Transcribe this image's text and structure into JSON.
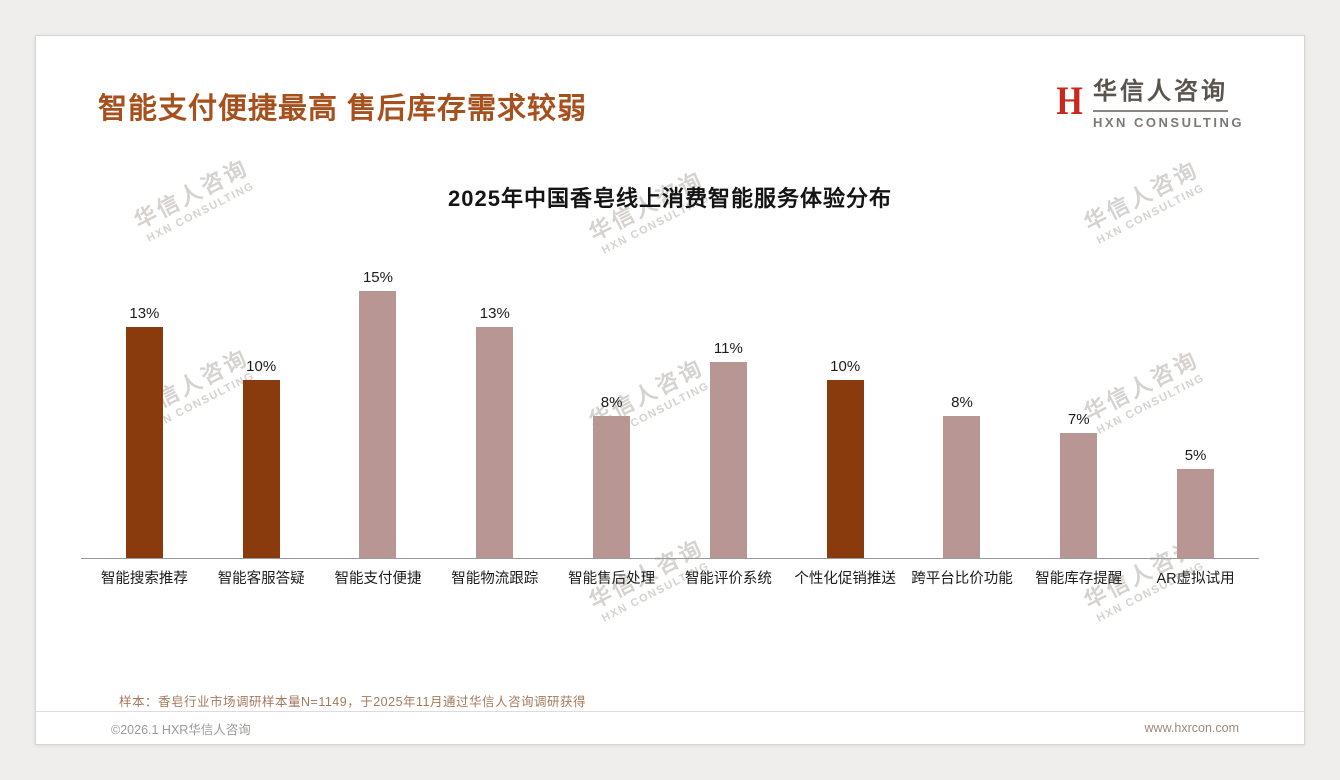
{
  "page": {
    "title": "智能支付便捷最高 售后库存需求较弱",
    "logo": {
      "mark": "H",
      "name_cn": "华信人咨询",
      "name_en": "HXN CONSULTING"
    },
    "watermark": {
      "line1": "华信人咨询",
      "line2": "HXN CONSULTING"
    },
    "footer": {
      "note": "样本：香皂行业市场调研样本量N=1149，于2025年11月通过华信人咨询调研获得",
      "copyright": "©2026.1 HXR华信人咨询",
      "website": "www.hxrcon.com"
    }
  },
  "chart_data": {
    "type": "bar",
    "title": "2025年中国香皂线上消费智能服务体验分布",
    "categories": [
      "智能搜索推荐",
      "智能客服答疑",
      "智能支付便捷",
      "智能物流跟踪",
      "智能售后处理",
      "智能评价系统",
      "个性化促销推送",
      "跨平台比价功能",
      "智能库存提醒",
      "AR虚拟试用"
    ],
    "values": [
      13,
      10,
      15,
      13,
      8,
      11,
      10,
      8,
      7,
      5
    ],
    "value_labels": [
      "13%",
      "10%",
      "15%",
      "13%",
      "8%",
      "11%",
      "10%",
      "8%",
      "7%",
      "5%"
    ],
    "highlight_indexes": [
      0,
      1,
      6
    ],
    "colors": {
      "highlight": "#8a3b0e",
      "normal": "#b79693"
    },
    "xlabel": "",
    "ylabel": "",
    "ylim": [
      0,
      16
    ],
    "grid": false,
    "legend": false
  }
}
